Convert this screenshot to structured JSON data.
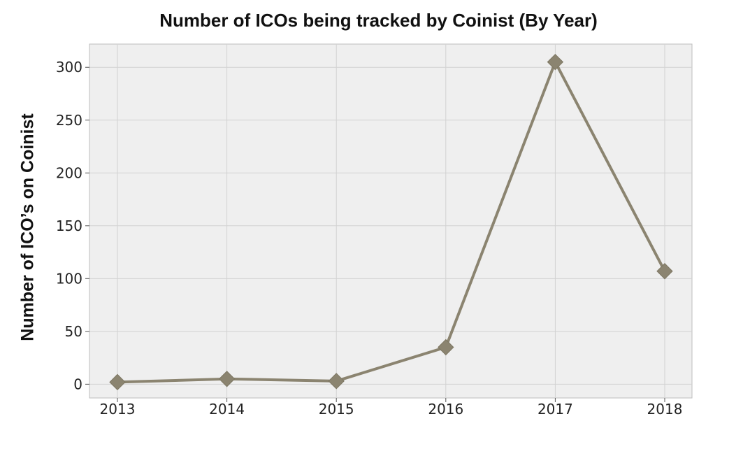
{
  "chart_data": {
    "type": "line",
    "title": "Number of ICOs being tracked by Coinist (By Year)",
    "xlabel": "",
    "ylabel": "Number of ICO’s on Coinist",
    "categories": [
      "2013",
      "2014",
      "2015",
      "2016",
      "2017",
      "2018"
    ],
    "series": [
      {
        "values": [
          2,
          5,
          3,
          35,
          305,
          107
        ]
      }
    ],
    "ylim": [
      -13,
      322
    ],
    "yticks": [
      0,
      50,
      100,
      150,
      200,
      250,
      300
    ],
    "grid": true,
    "marker": "diamond",
    "line_color": "#8b8470",
    "plot_background": "#efefef"
  }
}
